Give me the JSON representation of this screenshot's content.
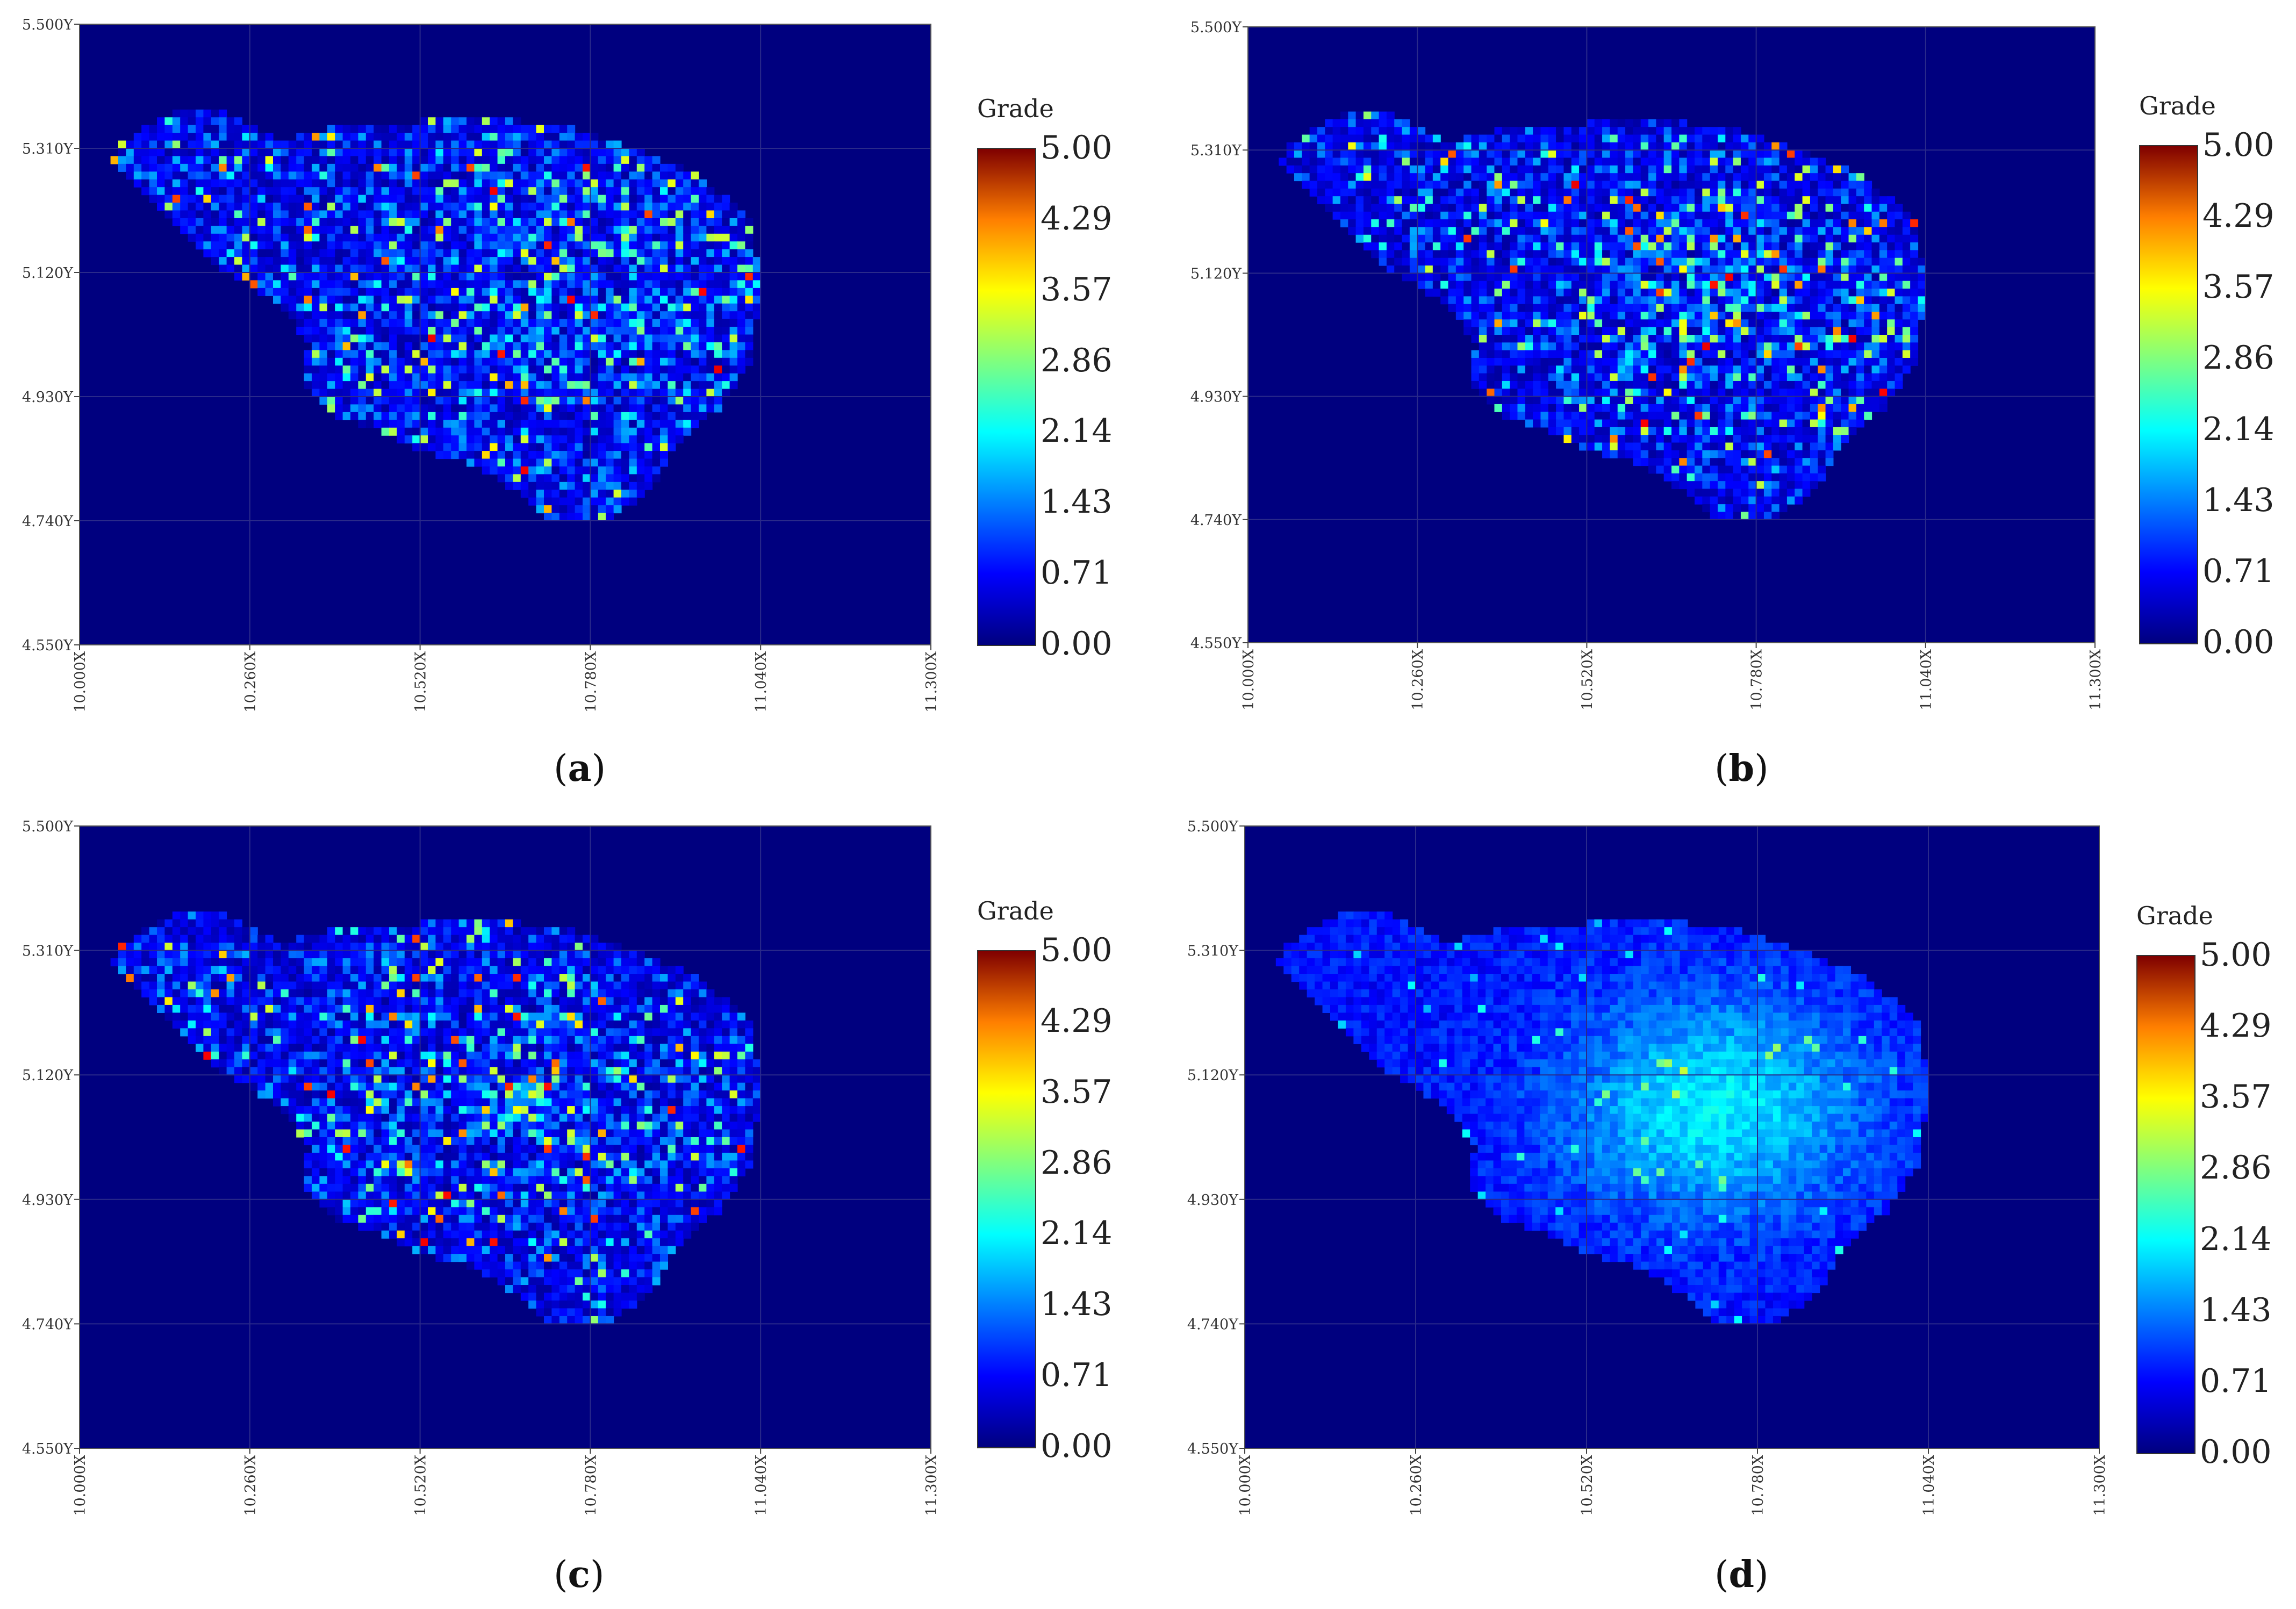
{
  "chart_data": [
    {
      "type": "heatmap",
      "panel_label": "a",
      "x_ticks": [
        "10.000X",
        "10.260X",
        "10.520X",
        "10.780X",
        "11.040X",
        "11.300X"
      ],
      "y_ticks": [
        "5.500Y",
        "5.310Y",
        "5.120Y",
        "4.930Y",
        "4.740Y",
        "4.550Y"
      ],
      "xlim": [
        10.0,
        11.3
      ],
      "ylim": [
        4.55,
        5.5
      ],
      "colorbar": {
        "title": "Grade",
        "ticks": [
          "5.00",
          "4.29",
          "3.57",
          "2.86",
          "2.14",
          "1.43",
          "0.71",
          "0.00"
        ],
        "range": [
          0,
          5
        ]
      },
      "grid": true,
      "pattern": "sparse"
    },
    {
      "type": "heatmap",
      "panel_label": "b",
      "x_ticks": [
        "10.000X",
        "10.260X",
        "10.520X",
        "10.780X",
        "11.040X",
        "11.300X"
      ],
      "y_ticks": [
        "5.500Y",
        "5.310Y",
        "5.120Y",
        "4.930Y",
        "4.740Y",
        "4.550Y"
      ],
      "xlim": [
        10.0,
        11.3
      ],
      "ylim": [
        4.55,
        5.5
      ],
      "colorbar": {
        "title": "Grade",
        "ticks": [
          "5.00",
          "4.29",
          "3.57",
          "2.86",
          "2.14",
          "1.43",
          "0.71",
          "0.00"
        ],
        "range": [
          0,
          5
        ]
      },
      "grid": true,
      "pattern": "sparse"
    },
    {
      "type": "heatmap",
      "panel_label": "c",
      "x_ticks": [
        "10.000X",
        "10.260X",
        "10.520X",
        "10.780X",
        "11.040X",
        "11.300X"
      ],
      "y_ticks": [
        "5.500Y",
        "5.310Y",
        "5.120Y",
        "4.930Y",
        "4.740Y",
        "4.550Y"
      ],
      "xlim": [
        10.0,
        11.3
      ],
      "ylim": [
        4.55,
        5.5
      ],
      "colorbar": {
        "title": "Grade",
        "ticks": [
          "5.00",
          "4.29",
          "3.57",
          "2.86",
          "2.14",
          "1.43",
          "0.71",
          "0.00"
        ],
        "range": [
          0,
          5
        ]
      },
      "grid": true,
      "pattern": "sparse"
    },
    {
      "type": "heatmap",
      "panel_label": "d",
      "x_ticks": [
        "10.000X",
        "10.260X",
        "10.520X",
        "10.780X",
        "11.040X",
        "11.300X"
      ],
      "y_ticks": [
        "5.500Y",
        "5.310Y",
        "5.120Y",
        "4.930Y",
        "4.740Y",
        "4.550Y"
      ],
      "xlim": [
        10.0,
        11.3
      ],
      "ylim": [
        4.55,
        5.5
      ],
      "colorbar": {
        "title": "Grade",
        "ticks": [
          "5.00",
          "4.29",
          "3.57",
          "2.86",
          "2.14",
          "1.43",
          "0.71",
          "0.00"
        ],
        "range": [
          0,
          5
        ]
      },
      "grid": true,
      "pattern": "smooth"
    }
  ]
}
